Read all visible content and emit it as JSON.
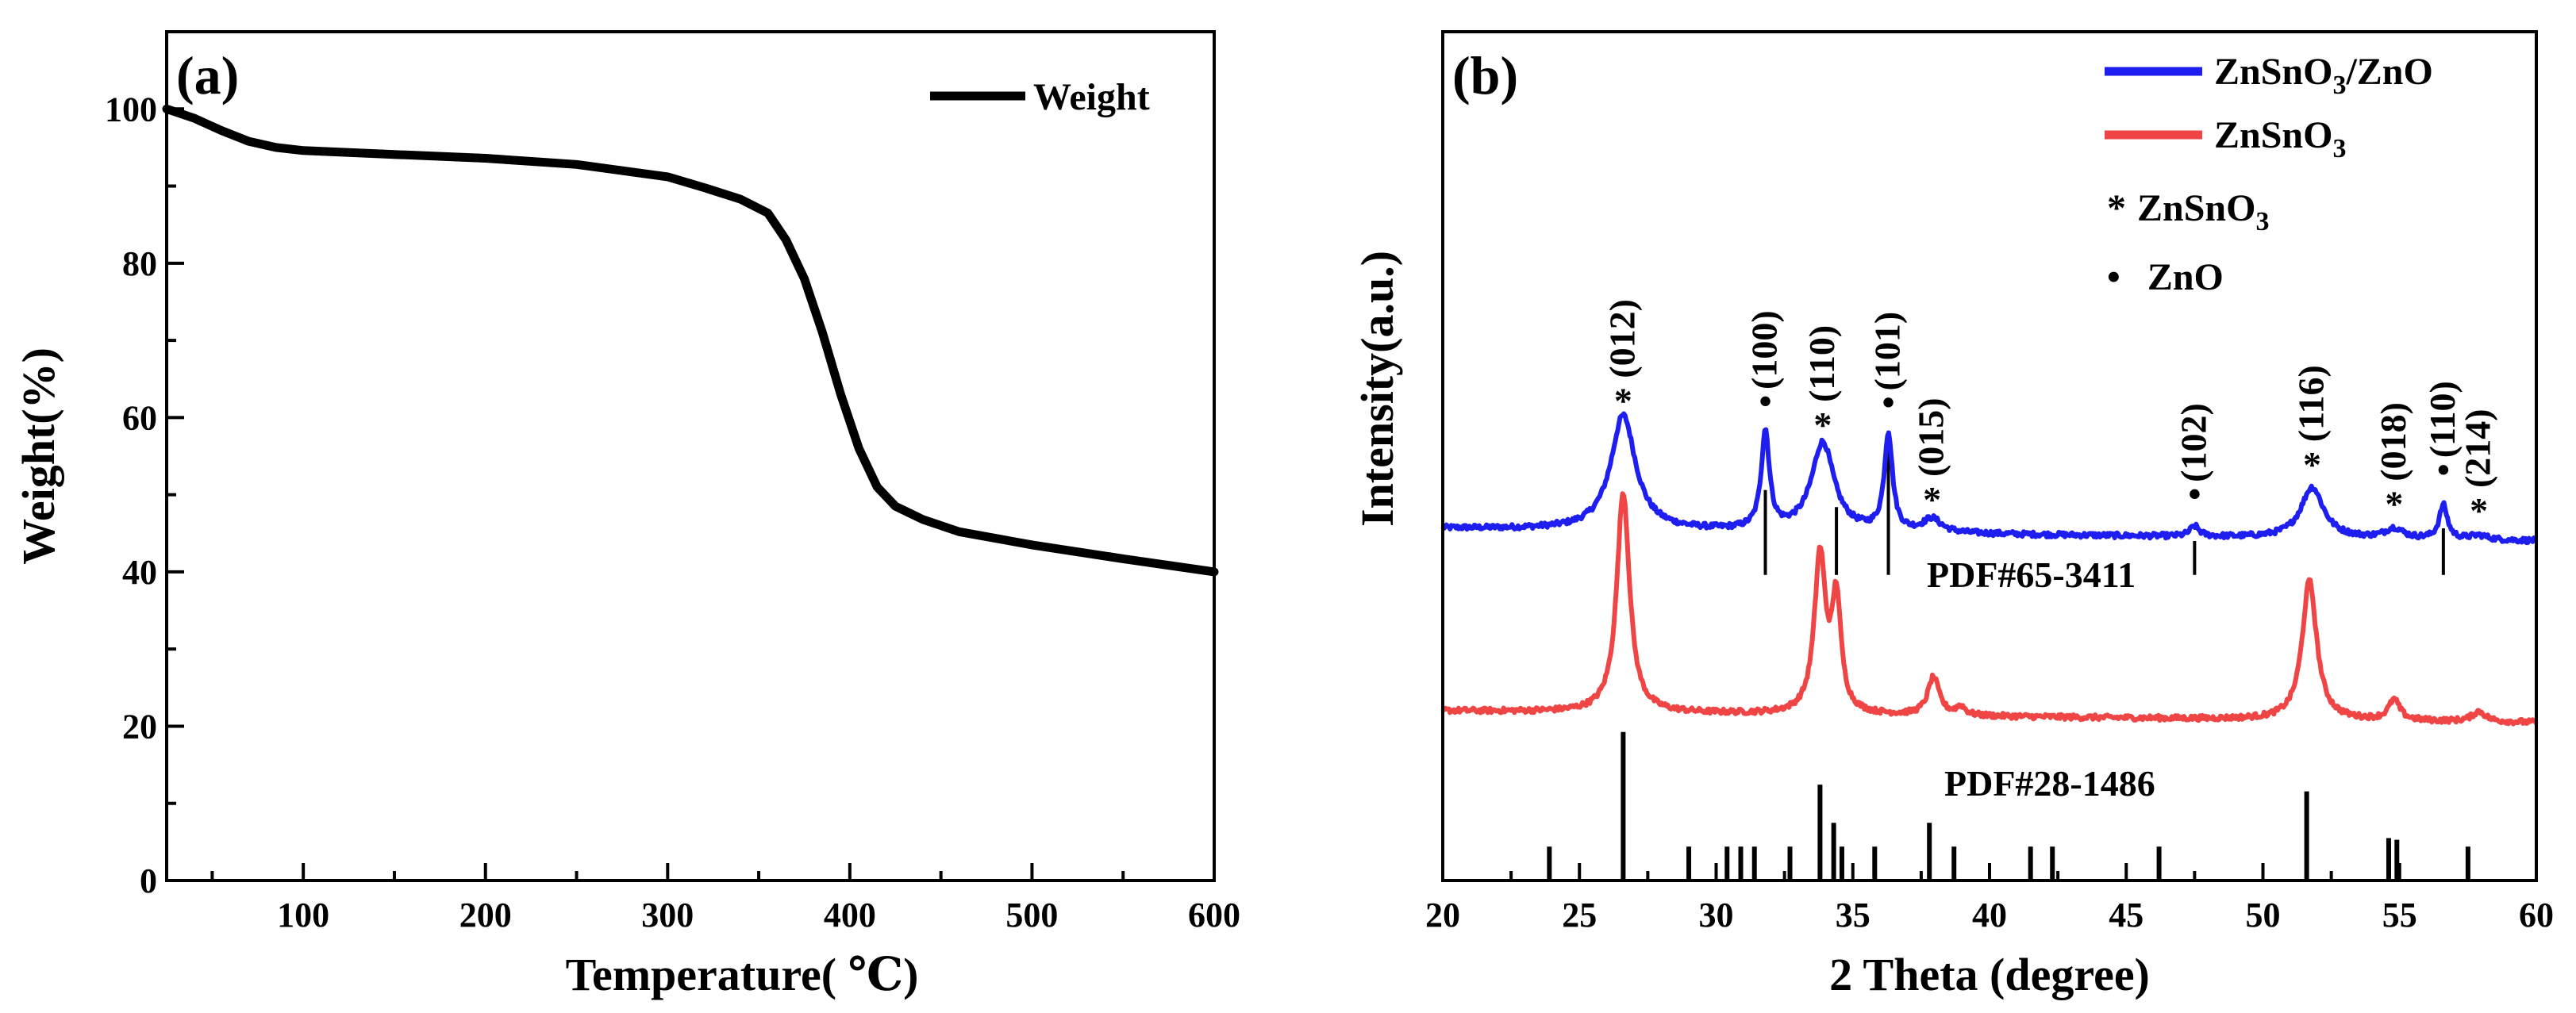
{
  "chart_data": [
    {
      "type": "line",
      "panel_label": "(a)",
      "xlabel": "Temperature( ℃)",
      "ylabel": "Weight(%)",
      "xlim": [
        25,
        600
      ],
      "ylim": [
        0,
        110
      ],
      "xticks": [
        "100",
        "200",
        "300",
        "400",
        "500",
        "600"
      ],
      "yticks": [
        "0",
        "20",
        "40",
        "60",
        "80",
        "100"
      ],
      "legend": {
        "label": "Weight",
        "position": "top-right"
      },
      "series": [
        {
          "name": "Weight",
          "color": "#000000",
          "points": [
            [
              25,
              100
            ],
            [
              40,
              98.8
            ],
            [
              55,
              97.2
            ],
            [
              70,
              95.8
            ],
            [
              85,
              95
            ],
            [
              100,
              94.6
            ],
            [
              150,
              94.1
            ],
            [
              200,
              93.6
            ],
            [
              250,
              92.8
            ],
            [
              300,
              91.2
            ],
            [
              320,
              89.8
            ],
            [
              340,
              88.3
            ],
            [
              355,
              86.5
            ],
            [
              365,
              83
            ],
            [
              375,
              78
            ],
            [
              385,
              71
            ],
            [
              395,
              63
            ],
            [
              405,
              56
            ],
            [
              415,
              51
            ],
            [
              425,
              48.5
            ],
            [
              440,
              46.8
            ],
            [
              460,
              45.2
            ],
            [
              500,
              43.5
            ],
            [
              550,
              41.7
            ],
            [
              600,
              40
            ]
          ]
        }
      ]
    },
    {
      "type": "line",
      "panel_label": "(b)",
      "xlabel": "2 Theta (degree)",
      "ylabel": "Intensity(a.u.)",
      "xlim": [
        20,
        60
      ],
      "ylim": [
        0,
        1
      ],
      "xticks": [
        "20",
        "25",
        "30",
        "35",
        "40",
        "45",
        "50",
        "55",
        "60"
      ],
      "legend": {
        "position": "top-right",
        "entries": [
          {
            "name": "ZnSnO",
            "sub": "3",
            "suffix": "/ZnO",
            "color": "#1e1ef0"
          },
          {
            "name": "ZnSnO",
            "sub": "3",
            "suffix": "",
            "color": "#ef4545"
          }
        ],
        "markers": [
          {
            "symbol": "*",
            "name": "ZnSnO",
            "sub": "3"
          },
          {
            "symbol": "•",
            "name": "ZnO",
            "sub": ""
          }
        ]
      },
      "series": [
        {
          "name": "ZnSnO3/ZnO",
          "color": "#1e1ef0",
          "baseline": 0.415,
          "end_baseline": 0.4,
          "peaks": [
            [
              26.6,
              0.135,
              0.55
            ],
            [
              31.8,
              0.115,
              0.18
            ],
            [
              33.9,
              0.105,
              0.5
            ],
            [
              36.3,
              0.115,
              0.18
            ],
            [
              37.9,
              0.016,
              0.4
            ],
            [
              47.5,
              0.012,
              0.2
            ],
            [
              51.8,
              0.06,
              0.5
            ],
            [
              54.8,
              0.012,
              0.4
            ],
            [
              56.6,
              0.04,
              0.18
            ],
            [
              57.9,
              0.005,
              0.4
            ]
          ]
        },
        {
          "name": "ZnSnO3",
          "color": "#ef4545",
          "baseline": 0.2,
          "end_baseline": 0.186,
          "peaks": [
            [
              26.6,
              0.26,
              0.28
            ],
            [
              33.8,
              0.185,
              0.25
            ],
            [
              34.4,
              0.13,
              0.2
            ],
            [
              37.95,
              0.045,
              0.25
            ],
            [
              38.95,
              0.01,
              0.2
            ],
            [
              51.7,
              0.164,
              0.32
            ],
            [
              54.8,
              0.024,
              0.25
            ],
            [
              57.9,
              0.012,
              0.3
            ]
          ]
        }
      ],
      "peak_labels": [
        {
          "x": 26.6,
          "symbol": "*",
          "hkl": "(012)"
        },
        {
          "x": 31.8,
          "symbol": "•",
          "hkl": "(100)"
        },
        {
          "x": 33.9,
          "symbol": "*",
          "hkl": "(110)"
        },
        {
          "x": 36.3,
          "symbol": "•",
          "hkl": "(101)"
        },
        {
          "x": 37.9,
          "symbol": "*",
          "hkl": "(015)"
        },
        {
          "x": 47.5,
          "symbol": "•",
          "hkl": "(102)"
        },
        {
          "x": 51.8,
          "symbol": "*",
          "hkl": "(116)"
        },
        {
          "x": 54.8,
          "symbol": "*",
          "hkl": "(018)"
        },
        {
          "x": 56.6,
          "symbol": "•",
          "hkl": "(110)"
        },
        {
          "x": 57.9,
          "symbol": "*",
          "hkl": "(214)"
        }
      ],
      "references": [
        {
          "label": "PDF#65-3411",
          "lines": [
            [
              31.8,
              0.1
            ],
            [
              34.4,
              0.08
            ],
            [
              36.3,
              0.17
            ],
            [
              47.5,
              0.04
            ],
            [
              56.6,
              0.055
            ]
          ]
        },
        {
          "label": "PDF#28-1486",
          "lines": [
            [
              23.9,
              0.04
            ],
            [
              26.6,
              0.175
            ],
            [
              29.0,
              0.04
            ],
            [
              30.4,
              0.04
            ],
            [
              30.9,
              0.04
            ],
            [
              31.4,
              0.04
            ],
            [
              32.7,
              0.04
            ],
            [
              33.8,
              0.113
            ],
            [
              34.3,
              0.068
            ],
            [
              34.6,
              0.04
            ],
            [
              35.8,
              0.04
            ],
            [
              37.8,
              0.068
            ],
            [
              38.7,
              0.04
            ],
            [
              41.5,
              0.04
            ],
            [
              42.3,
              0.04
            ],
            [
              46.2,
              0.04
            ],
            [
              51.6,
              0.105
            ],
            [
              54.6,
              0.05
            ],
            [
              54.9,
              0.048
            ],
            [
              57.5,
              0.04
            ]
          ]
        }
      ]
    }
  ]
}
